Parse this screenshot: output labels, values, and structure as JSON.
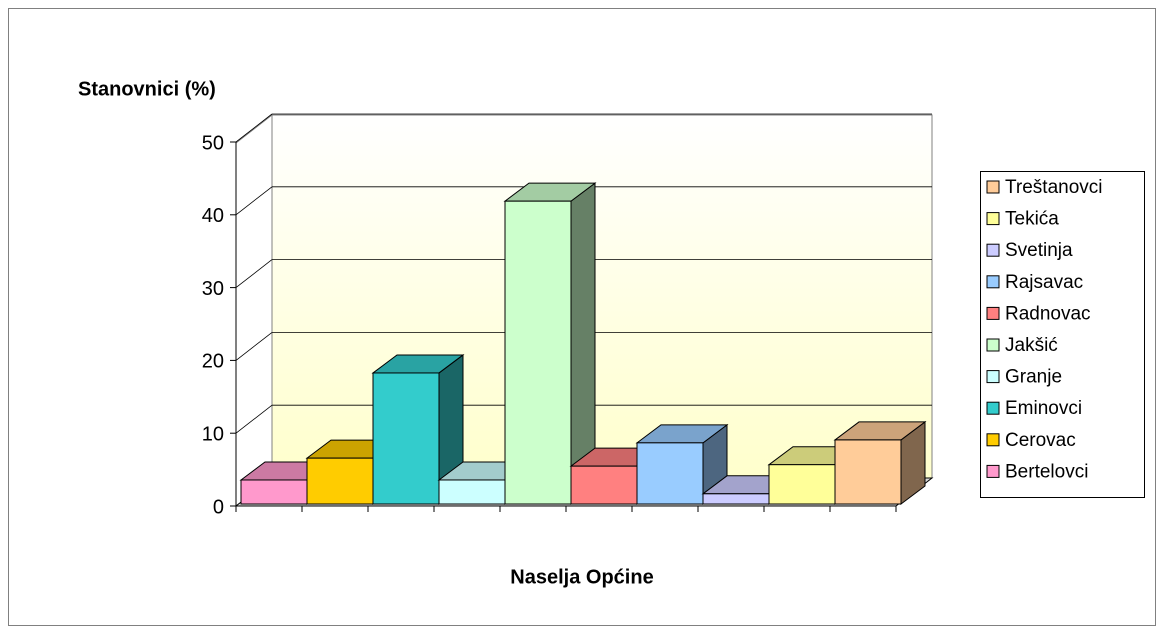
{
  "chart_data": {
    "type": "bar",
    "y_label": "Stanovnici (%)",
    "x_label": "Naselja Općine",
    "series": [
      {
        "name": "Bertelovci",
        "color": "#ff99cc",
        "values": [
          3.3
        ]
      },
      {
        "name": "Cerovac",
        "color": "#ffcc00",
        "values": [
          6.3
        ]
      },
      {
        "name": "Eminovci",
        "color": "#33cccc",
        "values": [
          18
        ]
      },
      {
        "name": "Granje",
        "color": "#ccffff",
        "values": [
          3.3
        ]
      },
      {
        "name": "Jakšić",
        "color": "#ccffcc",
        "values": [
          41.6
        ]
      },
      {
        "name": "Radnovac",
        "color": "#ff8080",
        "values": [
          5.2
        ]
      },
      {
        "name": "Rajsavac",
        "color": "#99ccff",
        "values": [
          8.4
        ]
      },
      {
        "name": "Svetinja",
        "color": "#ccccff",
        "values": [
          1.4
        ]
      },
      {
        "name": "Tekića",
        "color": "#ffff99",
        "values": [
          5.4
        ]
      },
      {
        "name": "Treštanovci",
        "color": "#ffcc99",
        "values": [
          8.8
        ]
      }
    ],
    "ylim": [
      0,
      50
    ],
    "yticks": [
      0,
      10,
      20,
      30,
      40,
      50
    ],
    "grid": true,
    "legend": "right"
  }
}
